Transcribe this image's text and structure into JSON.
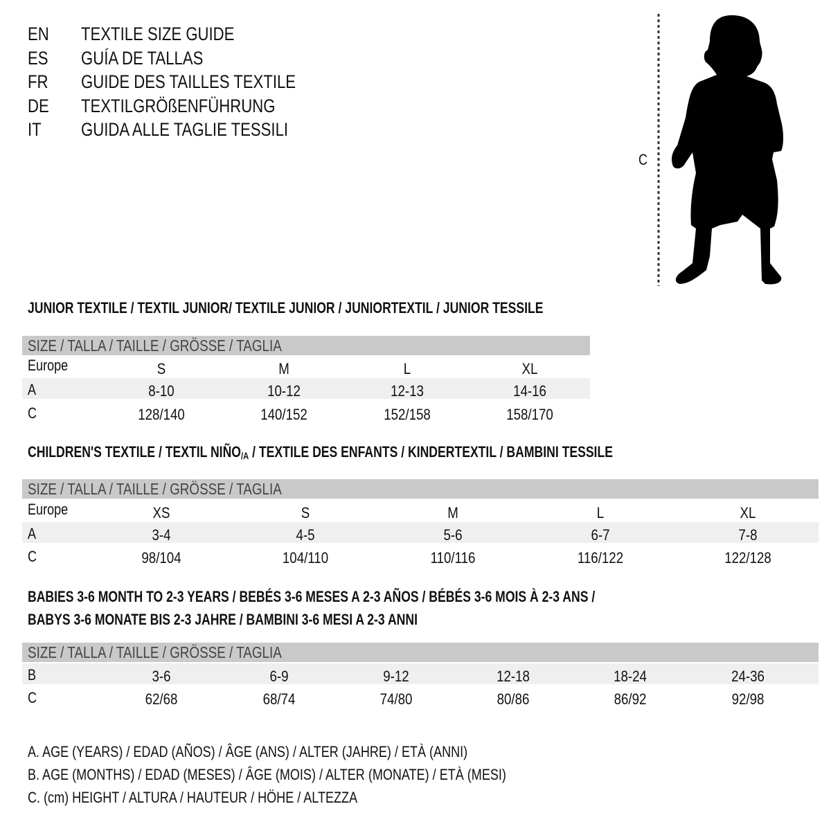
{
  "languages": [
    {
      "code": "EN",
      "title": "TEXTILE SIZE GUIDE"
    },
    {
      "code": "ES",
      "title": "GUÍA DE TALLAS"
    },
    {
      "code": "FR",
      "title": "GUIDE DES TAILLES TEXTILE"
    },
    {
      "code": "DE",
      "title": "TEXTILGRÖßENFÜHRUNG"
    },
    {
      "code": "IT",
      "title": "GUIDA ALLE TAGLIE TESSILI"
    }
  ],
  "figure": {
    "measure_label": "C",
    "icon": "child-silhouette-icon"
  },
  "colors": {
    "header_band": "#c9c9c9",
    "alt_row": "#efefef"
  },
  "sections": [
    {
      "heading": [
        "JUNIOR TEXTILE / TEXTIL JUNIOR/ TEXTILE JUNIOR / JUNIORTEXTIL / JUNIOR TESSILE"
      ],
      "size_header": "SIZE / TALLA / TAILLE / GRÖSSE / TAGLIA",
      "rows": [
        {
          "label": "Europe",
          "values": [
            "S",
            "M",
            "L",
            "XL"
          ]
        },
        {
          "label": "A",
          "values": [
            "8-10",
            "10-12",
            "12-13",
            "14-16"
          ]
        },
        {
          "label": "C",
          "values": [
            "128/140",
            "140/152",
            "152/158",
            "158/170"
          ]
        }
      ]
    },
    {
      "heading": [
        "CHILDREN'S TEXTILE / TEXTIL NIÑO",
        "/A",
        " / TEXTILE DES ENFANTS / KINDERTEXTIL / BAMBINI TESSILE"
      ],
      "size_header": "SIZE / TALLA / TAILLE / GRÖSSE / TAGLIA",
      "rows": [
        {
          "label": "Europe",
          "values": [
            "XS",
            "S",
            "M",
            "L",
            "XL"
          ]
        },
        {
          "label": "A",
          "values": [
            "3-4",
            "4-5",
            "5-6",
            "6-7",
            "7-8"
          ]
        },
        {
          "label": "C",
          "values": [
            "98/104",
            "104/110",
            "110/116",
            "116/122",
            "122/128"
          ]
        }
      ]
    },
    {
      "heading": [
        "BABIES 3-6 MONTH TO 2-3 YEARS / BEBÉS 3-6 MESES A 2-3 AÑOS / BÉBÉS 3-6 MOIS À 2-3 ANS /",
        "BABYS 3-6 MONATE BIS 2-3 JAHRE / BAMBINI 3-6 MESI A 2-3 ANNI"
      ],
      "size_header": "SIZE / TALLA / TAILLE / GRÖSSE / TAGLIA",
      "rows": [
        {
          "label": "B",
          "values": [
            "3-6",
            "6-9",
            "9-12",
            "12-18",
            "18-24",
            "24-36"
          ]
        },
        {
          "label": "C",
          "values": [
            "62/68",
            "68/74",
            "74/80",
            "80/86",
            "86/92",
            "92/98"
          ]
        }
      ]
    }
  ],
  "legend": [
    "A. AGE (YEARS) / EDAD (AÑOS) / ÂGE (ANS) / ALTER (JAHRE) / ETÀ (ANNI)",
    "B. AGE (MONTHS) / EDAD (MESES) / ÂGE (MOIS) / ALTER (MONATE) / ETÀ (MESI)",
    "C. (cm) HEIGHT / ALTURA / HAUTEUR / HÖHE / ALTEZZA"
  ]
}
